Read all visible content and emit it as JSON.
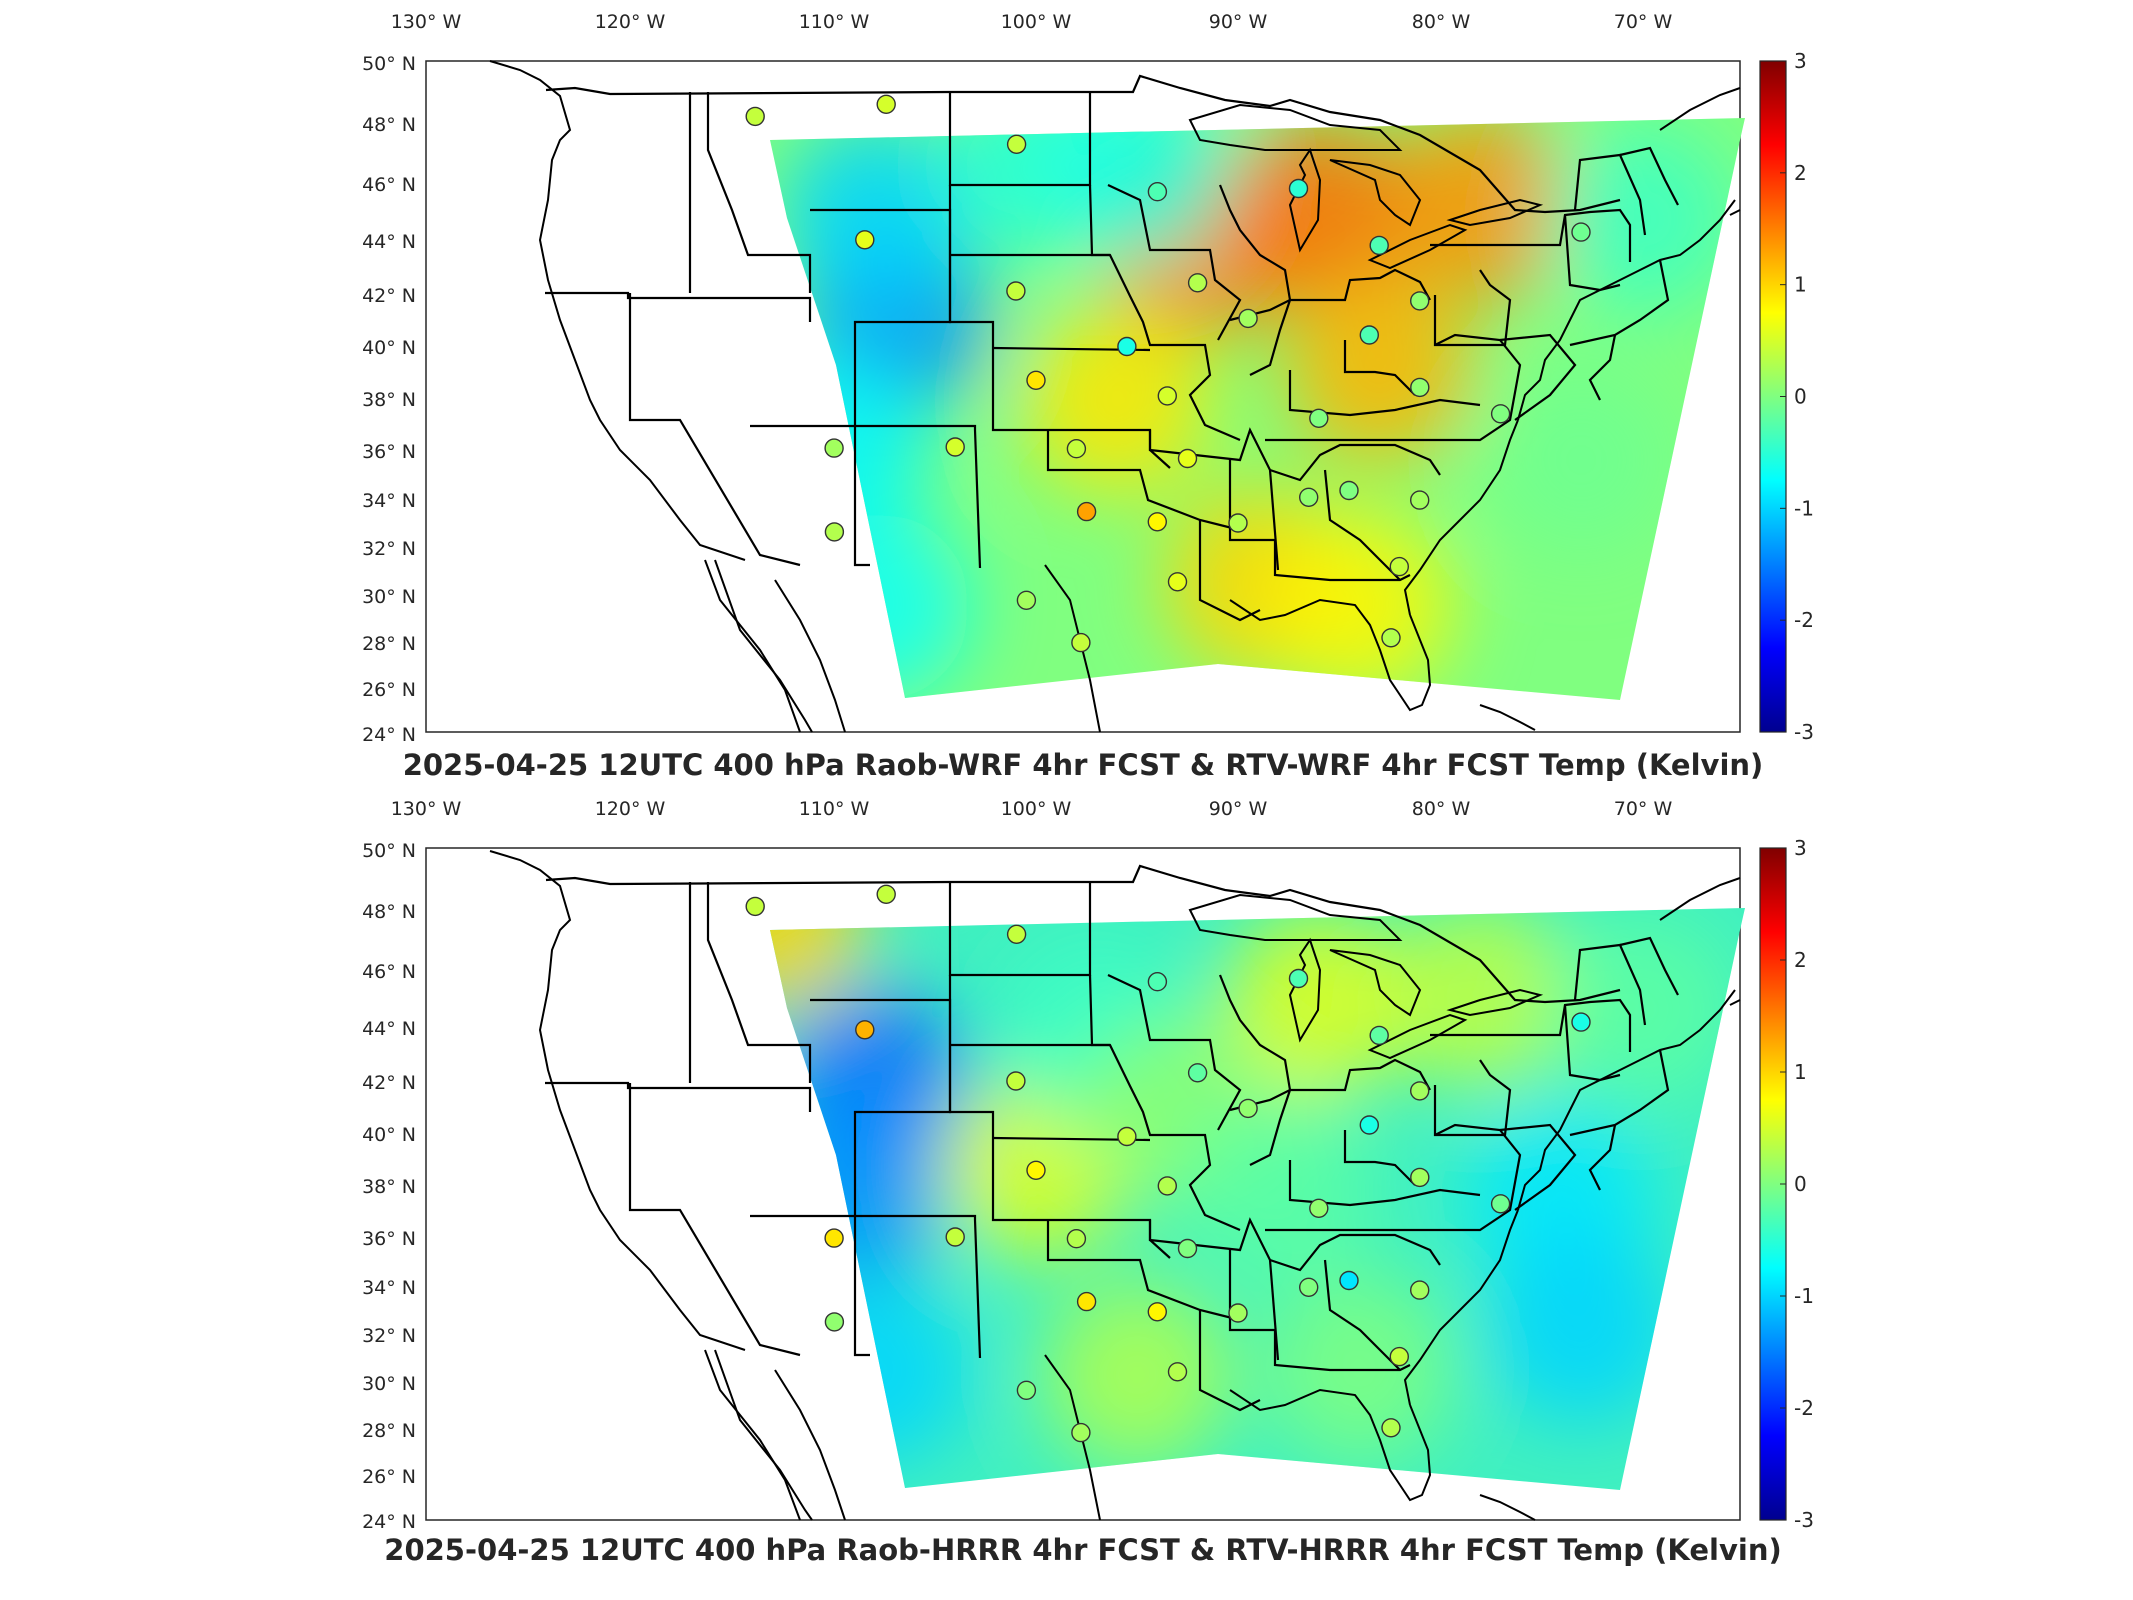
{
  "colors": {
    "colormap": [
      "#00008f",
      "#0000ff",
      "#0080ff",
      "#00ffff",
      "#80ff80",
      "#ffff00",
      "#ff8000",
      "#ff0000",
      "#800000"
    ],
    "frame": "#262626",
    "coast": "#000000",
    "station_edge": "#333333"
  },
  "colorbar": {
    "min": -3,
    "max": 3,
    "ticks": [
      "3",
      "2",
      "1",
      "0",
      "-1",
      "-2",
      "-3"
    ]
  },
  "lon_labels": [
    "130° W",
    "120° W",
    "110° W",
    "100° W",
    "90° W",
    "80° W",
    "70° W"
  ],
  "lat_labels": [
    "50° N",
    "48° N",
    "46° N",
    "44° N",
    "42° N",
    "40° N",
    "38° N",
    "36° N",
    "34° N",
    "32° N",
    "30° N",
    "28° N",
    "26° N",
    "24° N"
  ],
  "panels": [
    {
      "title": "2025-04-25 12UTC 400 hPa Raob-WRF 4hr FCST & RTV-WRF 4hr FCST Temp (Kelvin)",
      "field": [
        {
          "lon": -92,
          "lat": 43,
          "value": 1.5
        },
        {
          "lon": -86,
          "lat": 44,
          "value": 1.6
        },
        {
          "lon": -78,
          "lat": 44,
          "value": 1.4
        },
        {
          "lon": -83,
          "lat": 38,
          "value": 1.2
        },
        {
          "lon": -96,
          "lat": 37,
          "value": 0.9
        },
        {
          "lon": -89,
          "lat": 30,
          "value": 1.0
        },
        {
          "lon": -84,
          "lat": 29,
          "value": 0.8
        },
        {
          "lon": -107,
          "lat": 40,
          "value": -1.4
        },
        {
          "lon": -108,
          "lat": 44,
          "value": -1.0
        },
        {
          "lon": -110,
          "lat": 35,
          "value": -0.8
        },
        {
          "lon": -108,
          "lat": 29,
          "value": -0.7
        },
        {
          "lon": -100,
          "lat": 46,
          "value": -0.5
        },
        {
          "lon": -95,
          "lat": 46,
          "value": -0.6
        },
        {
          "lon": -70,
          "lat": 43,
          "value": -0.4
        },
        {
          "lon": -73,
          "lat": 34,
          "value": -0.1
        }
      ],
      "stations": [
        {
          "lon": -114,
          "lat": 47.5,
          "value": 0.4
        },
        {
          "lon": -107.5,
          "lat": 48.2,
          "value": 0.5
        },
        {
          "lon": -101,
          "lat": 46.8,
          "value": 0.4
        },
        {
          "lon": -94,
          "lat": 45,
          "value": -0.3
        },
        {
          "lon": -87,
          "lat": 45,
          "value": -0.5
        },
        {
          "lon": -83,
          "lat": 42.7,
          "value": -0.3
        },
        {
          "lon": -73,
          "lat": 42.7,
          "value": -0.1
        },
        {
          "lon": -108.5,
          "lat": 43,
          "value": 0.6
        },
        {
          "lon": -101,
          "lat": 41.2,
          "value": 0.4
        },
        {
          "lon": -92,
          "lat": 41.5,
          "value": 0.3
        },
        {
          "lon": -89.5,
          "lat": 40.1,
          "value": 0.2
        },
        {
          "lon": -81,
          "lat": 40.5,
          "value": 0.1
        },
        {
          "lon": -95.5,
          "lat": 39.1,
          "value": -0.6
        },
        {
          "lon": -83.5,
          "lat": 39.3,
          "value": -0.3
        },
        {
          "lon": -100,
          "lat": 37.8,
          "value": 0.9
        },
        {
          "lon": -93.5,
          "lat": 37.2,
          "value": 0.5
        },
        {
          "lon": -81,
          "lat": 37.2,
          "value": 0.1
        },
        {
          "lon": -86,
          "lat": 36.2,
          "value": 0.0
        },
        {
          "lon": -77,
          "lat": 36,
          "value": 0.0
        },
        {
          "lon": -110,
          "lat": 35,
          "value": 0.2
        },
        {
          "lon": -104,
          "lat": 35.2,
          "value": 0.5
        },
        {
          "lon": -98,
          "lat": 35.2,
          "value": 0.4
        },
        {
          "lon": -92.5,
          "lat": 34.8,
          "value": 0.6
        },
        {
          "lon": -86.5,
          "lat": 33.2,
          "value": 0.1
        },
        {
          "lon": -84.5,
          "lat": 33.4,
          "value": 0.0
        },
        {
          "lon": -97.5,
          "lat": 32.8,
          "value": 1.3
        },
        {
          "lon": -94,
          "lat": 32.4,
          "value": 0.8
        },
        {
          "lon": -90,
          "lat": 32.3,
          "value": 0.3
        },
        {
          "lon": -81,
          "lat": 32.9,
          "value": 0.2
        },
        {
          "lon": -110,
          "lat": 31.8,
          "value": 0.3
        },
        {
          "lon": -100.5,
          "lat": 29.4,
          "value": 0.2
        },
        {
          "lon": -93,
          "lat": 30.1,
          "value": 0.6
        },
        {
          "lon": -82,
          "lat": 30.4,
          "value": 0.4
        },
        {
          "lon": -97.8,
          "lat": 27.8,
          "value": 0.4
        },
        {
          "lon": -82.4,
          "lat": 27.7,
          "value": 0.3
        }
      ]
    },
    {
      "title": "2025-04-25 12UTC 400 hPa Raob-HRRR 4hr FCST & RTV-HRRR 4hr FCST Temp (Kelvin)",
      "field": [
        {
          "lon": -108,
          "lat": 41,
          "value": -1.6
        },
        {
          "lon": -109,
          "lat": 37,
          "value": -1.4
        },
        {
          "lon": -108,
          "lat": 30,
          "value": -1.0
        },
        {
          "lon": -113,
          "lat": 47,
          "value": 1.0
        },
        {
          "lon": -100,
          "lat": 38,
          "value": 0.6
        },
        {
          "lon": -86,
          "lat": 44,
          "value": 0.6
        },
        {
          "lon": -78,
          "lat": 44,
          "value": 0.4
        },
        {
          "lon": -97,
          "lat": 43,
          "value": -0.4
        },
        {
          "lon": -93,
          "lat": 40,
          "value": 0.1
        },
        {
          "lon": -88,
          "lat": 37,
          "value": -0.2
        },
        {
          "lon": -84,
          "lat": 30,
          "value": 0.0
        },
        {
          "lon": -74,
          "lat": 36,
          "value": -0.9
        },
        {
          "lon": -73,
          "lat": 31,
          "value": -1.0
        },
        {
          "lon": -70,
          "lat": 43,
          "value": -0.2
        },
        {
          "lon": -95,
          "lat": 30,
          "value": 0.3
        }
      ],
      "stations": [
        {
          "lon": -114,
          "lat": 47.5,
          "value": 0.4
        },
        {
          "lon": -107.5,
          "lat": 48.2,
          "value": 0.4
        },
        {
          "lon": -101,
          "lat": 46.8,
          "value": 0.4
        },
        {
          "lon": -94,
          "lat": 45,
          "value": -0.3
        },
        {
          "lon": -87,
          "lat": 45,
          "value": -0.3
        },
        {
          "lon": -83,
          "lat": 42.7,
          "value": -0.2
        },
        {
          "lon": -73,
          "lat": 42.7,
          "value": -0.6
        },
        {
          "lon": -108.5,
          "lat": 43,
          "value": 1.2
        },
        {
          "lon": -101,
          "lat": 41.2,
          "value": 0.4
        },
        {
          "lon": -92,
          "lat": 41.5,
          "value": -0.2
        },
        {
          "lon": -89.5,
          "lat": 40.1,
          "value": 0.1
        },
        {
          "lon": -81,
          "lat": 40.5,
          "value": 0.2
        },
        {
          "lon": -95.5,
          "lat": 39.1,
          "value": 0.4
        },
        {
          "lon": -83.5,
          "lat": 39.3,
          "value": -0.6
        },
        {
          "lon": -100,
          "lat": 37.8,
          "value": 0.8
        },
        {
          "lon": -93.5,
          "lat": 37.2,
          "value": 0.3
        },
        {
          "lon": -81,
          "lat": 37.2,
          "value": 0.2
        },
        {
          "lon": -86,
          "lat": 36.2,
          "value": 0.1
        },
        {
          "lon": -77,
          "lat": 36,
          "value": -0.1
        },
        {
          "lon": -110,
          "lat": 35,
          "value": 0.9
        },
        {
          "lon": -104,
          "lat": 35.2,
          "value": 0.4
        },
        {
          "lon": -98,
          "lat": 35.2,
          "value": 0.3
        },
        {
          "lon": -92.5,
          "lat": 34.8,
          "value": 0.0
        },
        {
          "lon": -86.5,
          "lat": 33.2,
          "value": 0.0
        },
        {
          "lon": -84.5,
          "lat": 33.4,
          "value": -0.9
        },
        {
          "lon": -97.5,
          "lat": 32.8,
          "value": 0.9
        },
        {
          "lon": -94,
          "lat": 32.4,
          "value": 0.8
        },
        {
          "lon": -90,
          "lat": 32.3,
          "value": 0.2
        },
        {
          "lon": -81,
          "lat": 32.9,
          "value": 0.2
        },
        {
          "lon": -110,
          "lat": 31.8,
          "value": 0.1
        },
        {
          "lon": -100.5,
          "lat": 29.4,
          "value": 0.0
        },
        {
          "lon": -93,
          "lat": 30.1,
          "value": 0.3
        },
        {
          "lon": -82,
          "lat": 30.4,
          "value": 0.4
        },
        {
          "lon": -97.8,
          "lat": 27.8,
          "value": 0.2
        },
        {
          "lon": -82.4,
          "lat": 27.7,
          "value": 0.3
        }
      ]
    }
  ]
}
